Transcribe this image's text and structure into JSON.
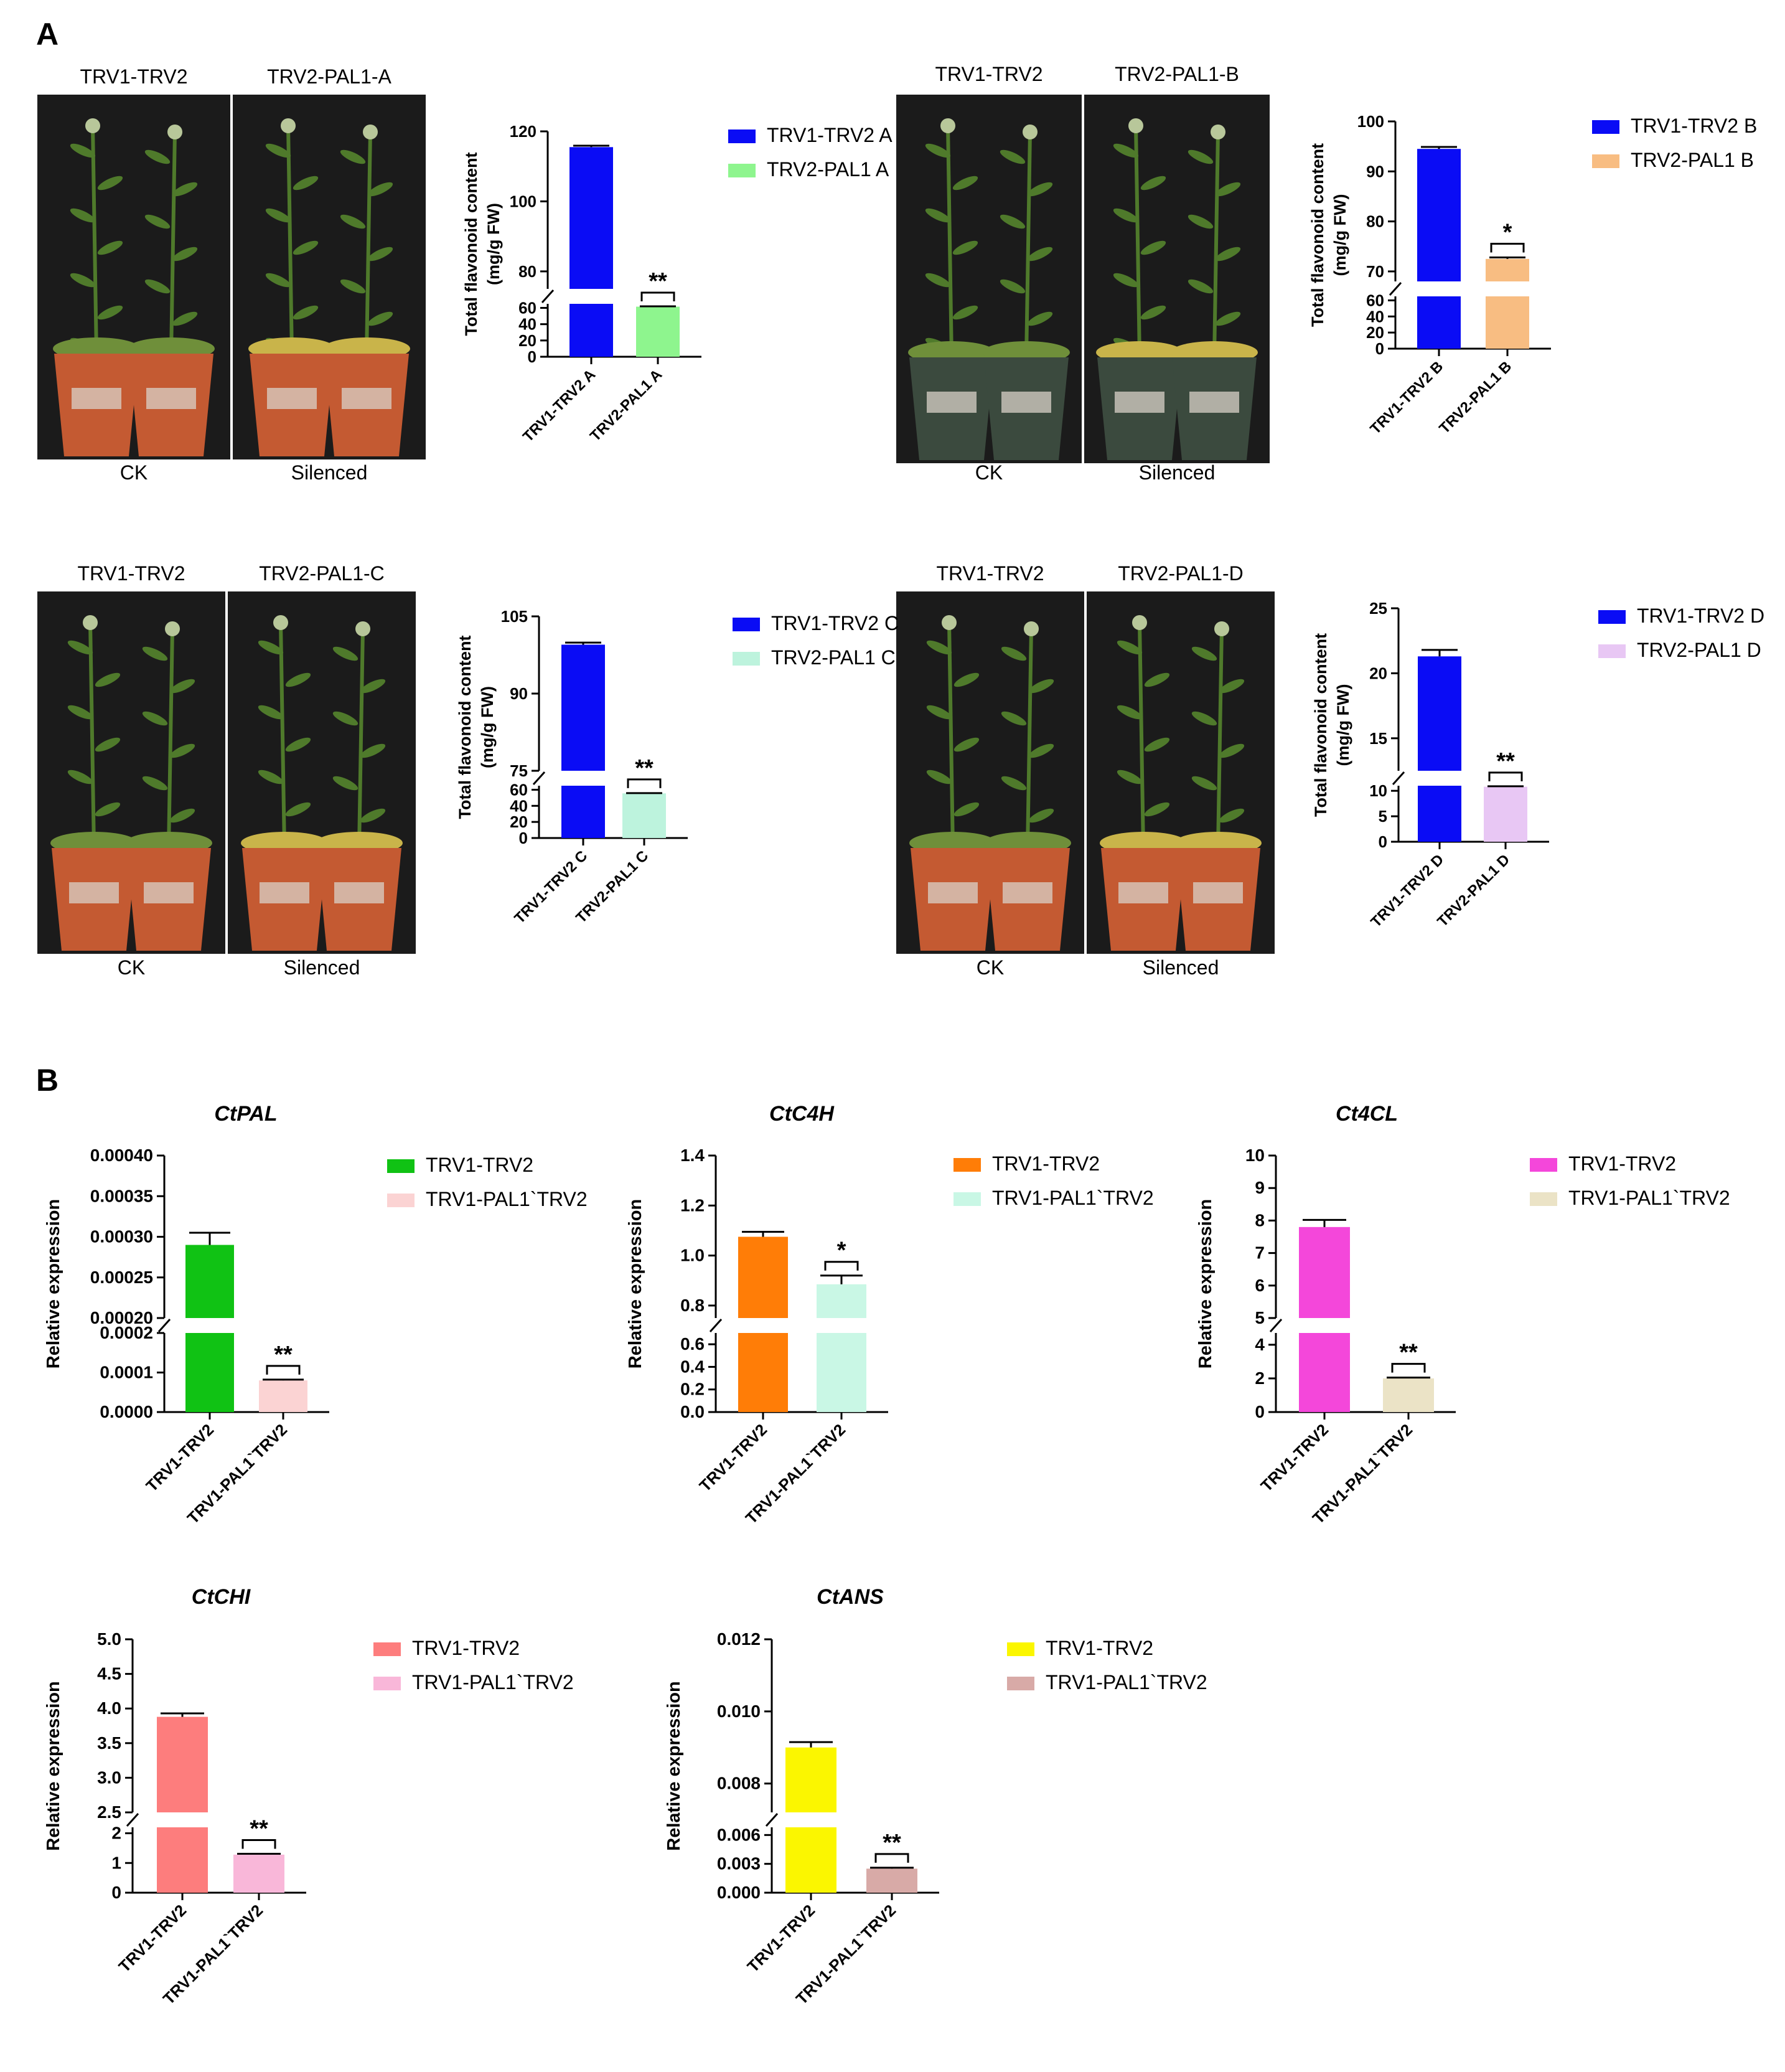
{
  "figure": {
    "panel_a_label": "A",
    "panel_b_label": "B"
  },
  "colors": {
    "trv2_blue": "#0a0cf5",
    "pal1_A": "#8ef58e",
    "pal1_B": "#f8bd82",
    "pal1_C": "#bdf3dd",
    "pal1_D": "#e8c7f4",
    "pal_ctrl": "#10c214",
    "pal_sil": "#fbd3d3",
    "c4h_ctrl": "#ff7d07",
    "c4h_sil": "#c9f7e5",
    "cl_ctrl": "#f447da",
    "cl_sil": "#ebe3c6",
    "chi_ctrl": "#fd7d7d",
    "chi_sil": "#f9b7d9",
    "ans_ctrl": "#fbf600",
    "ans_sil": "#d8aaa7",
    "photo_bg": "#1b1b1b",
    "pot_red": "#c45a32",
    "pot_green": "#3b4a3e",
    "stem_green": "#4f7a2b",
    "leaf_yellow": "#c9b44a"
  },
  "photos": [
    {
      "id": "A",
      "left_label": "TRV1-TRV2",
      "right_label": "TRV2-PAL1-A",
      "left_caption": "CK",
      "right_caption": "Silenced",
      "pot": "red"
    },
    {
      "id": "B",
      "left_label": "TRV1-TRV2",
      "right_label": "TRV2-PAL1-B",
      "left_caption": "CK",
      "right_caption": "Silenced",
      "pot": "green"
    },
    {
      "id": "C",
      "left_label": "TRV1-TRV2",
      "right_label": "TRV2-PAL1-C",
      "left_caption": "CK",
      "right_caption": "Silenced",
      "pot": "red"
    },
    {
      "id": "D",
      "left_label": "TRV1-TRV2",
      "right_label": "TRV2-PAL1-D",
      "left_caption": "CK",
      "right_caption": "Silenced",
      "pot": "red"
    }
  ],
  "chart_data": [
    {
      "id": "flavA",
      "type": "bar",
      "title": "",
      "ylabel": [
        "Total flavonoid content",
        "(mg/g FW)"
      ],
      "categories": [
        "TRV1-TRV2 A",
        "TRV2-PAL1 A"
      ],
      "values": [
        115.5,
        61.5
      ],
      "errors": [
        0.4,
        0.4
      ],
      "colorKeys": [
        "trv2_blue",
        "pal1_A"
      ],
      "legend": [
        "TRV1-TRV2 A",
        "TRV2-PAL1 A"
      ],
      "significance": "**",
      "lower": {
        "max": 65,
        "ticks": [
          0,
          20,
          40,
          60
        ]
      },
      "upper": {
        "min": 75,
        "max": 120,
        "ticks": [
          80,
          100,
          120
        ]
      },
      "breakAt": 65
    },
    {
      "id": "flavB",
      "type": "bar",
      "title": "",
      "ylabel": [
        "Total flavonoid content",
        "(mg/g FW)"
      ],
      "categories": [
        "TRV1-TRV2 B",
        "TRV2-PAL1 B"
      ],
      "values": [
        94.5,
        72.5
      ],
      "errors": [
        0.4,
        0.3
      ],
      "colorKeys": [
        "trv2_blue",
        "pal1_B"
      ],
      "legend": [
        "TRV1-TRV2 B",
        "TRV2-PAL1 B"
      ],
      "significance": "*",
      "lower": {
        "max": 65,
        "ticks": [
          0,
          20,
          40,
          60
        ]
      },
      "upper": {
        "min": 68,
        "max": 100,
        "ticks": [
          70,
          80,
          90,
          100
        ]
      },
      "breakAt": 65
    },
    {
      "id": "flavC",
      "type": "bar",
      "title": "",
      "ylabel": [
        "Total flavonoid content",
        "(mg/g FW)"
      ],
      "categories": [
        "TRV1-TRV2 C",
        "TRV2-PAL1 C"
      ],
      "values": [
        99.5,
        55.5
      ],
      "errors": [
        0.4,
        0.3
      ],
      "colorKeys": [
        "trv2_blue",
        "pal1_C"
      ],
      "legend": [
        "TRV1-TRV2 C",
        "TRV2-PAL1 C"
      ],
      "significance": "**",
      "lower": {
        "max": 65,
        "ticks": [
          0,
          20,
          40,
          60
        ]
      },
      "upper": {
        "min": 75,
        "max": 105,
        "ticks": [
          75,
          90,
          105
        ]
      },
      "breakAt": 65
    },
    {
      "id": "flavD",
      "type": "bar",
      "title": "",
      "ylabel": [
        "Total flavonoid content",
        "(mg/g FW)"
      ],
      "categories": [
        "TRV1-TRV2 D",
        "TRV2-PAL1 D"
      ],
      "values": [
        21.3,
        10.8
      ],
      "errors": [
        0.5,
        0.1
      ],
      "colorKeys": [
        "trv2_blue",
        "pal1_D"
      ],
      "legend": [
        "TRV1-TRV2 D",
        "TRV2-PAL1 D"
      ],
      "significance": "**",
      "lower": {
        "max": 11,
        "ticks": [
          0,
          5,
          10
        ]
      },
      "upper": {
        "min": 12.5,
        "max": 25,
        "ticks": [
          15,
          20,
          25
        ]
      },
      "breakAt": 11
    },
    {
      "id": "ctpal",
      "type": "bar",
      "title": "CtPAL",
      "ylabel": [
        "Relative expression"
      ],
      "categories": [
        "TRV1-TRV2",
        "TRV1-PAL1`TRV2"
      ],
      "values": [
        0.00029,
        8e-05
      ],
      "errors": [
        1.5e-05,
        2e-06
      ],
      "colorKeys": [
        "pal_ctrl",
        "pal_sil"
      ],
      "legend": [
        "TRV1-TRV2",
        "TRV1-PAL1`TRV2"
      ],
      "significance": "**",
      "lower": {
        "max": 0.0002,
        "ticks": [
          0,
          0.0001,
          0.0002
        ],
        "labels": [
          "0.0000",
          "0.0001",
          "0.0002"
        ]
      },
      "upper": {
        "min": 0.0002,
        "max": 0.0004,
        "ticks": [
          0.0002,
          0.00025,
          0.0003,
          0.00035,
          0.0004
        ],
        "labels": [
          "0.00020",
          "0.00025",
          "0.00030",
          "0.00035",
          "0.00040"
        ]
      },
      "breakAt": 0.0002
    },
    {
      "id": "ctc4h",
      "type": "bar",
      "title": "CtC4H",
      "ylabel": [
        "Relative expression"
      ],
      "categories": [
        "TRV1-TRV2",
        "TRV1-PAL1`TRV2"
      ],
      "values": [
        1.075,
        0.885
      ],
      "errors": [
        0.02,
        0.035
      ],
      "colorKeys": [
        "c4h_ctrl",
        "c4h_sil"
      ],
      "legend": [
        "TRV1-TRV2",
        "TRV1-PAL1`TRV2"
      ],
      "significance": "*",
      "lower": {
        "max": 0.7,
        "ticks": [
          0,
          0.2,
          0.4,
          0.6
        ],
        "labels": [
          "0.0",
          "0.2",
          "0.4",
          "0.6"
        ]
      },
      "upper": {
        "min": 0.75,
        "max": 1.4,
        "ticks": [
          0.8,
          1.0,
          1.2,
          1.4
        ],
        "labels": [
          "0.8",
          "1.0",
          "1.2",
          "1.4"
        ]
      },
      "breakAt": 0.7
    },
    {
      "id": "ct4cl",
      "type": "bar",
      "title": "Ct4CL",
      "ylabel": [
        "Relative expression"
      ],
      "categories": [
        "TRV1-TRV2",
        "TRV1-PAL1`TRV2"
      ],
      "values": [
        7.8,
        2.0
      ],
      "errors": [
        0.22,
        0.05
      ],
      "colorKeys": [
        "cl_ctrl",
        "cl_sil"
      ],
      "legend": [
        "TRV1-TRV2",
        "TRV1-PAL1`TRV2"
      ],
      "significance": "**",
      "lower": {
        "max": 4.7,
        "ticks": [
          0,
          2,
          4
        ],
        "labels": [
          "0",
          "2",
          "4"
        ]
      },
      "upper": {
        "min": 5,
        "max": 10,
        "ticks": [
          5,
          6,
          7,
          8,
          9,
          10
        ],
        "labels": [
          "5",
          "6",
          "7",
          "8",
          "9",
          "10"
        ]
      },
      "breakAt": 4.7
    },
    {
      "id": "ctchi",
      "type": "bar",
      "title": "CtCHI",
      "ylabel": [
        "Relative expression"
      ],
      "categories": [
        "TRV1-TRV2",
        "TRV1-PAL1`TRV2"
      ],
      "values": [
        3.88,
        1.28
      ],
      "errors": [
        0.05,
        0.03
      ],
      "colorKeys": [
        "chi_ctrl",
        "chi_sil"
      ],
      "legend": [
        "TRV1-TRV2",
        "TRV1-PAL1`TRV2"
      ],
      "significance": "**",
      "lower": {
        "max": 2.2,
        "ticks": [
          0,
          1,
          2
        ],
        "labels": [
          "0",
          "1",
          "2"
        ]
      },
      "upper": {
        "min": 2.5,
        "max": 5.0,
        "ticks": [
          2.5,
          3.0,
          3.5,
          4.0,
          4.5,
          5.0
        ],
        "labels": [
          "2.5",
          "3.0",
          "3.5",
          "4.0",
          "4.5",
          "5.0"
        ]
      },
      "breakAt": 2.2
    },
    {
      "id": "ctans",
      "type": "bar",
      "title": "CtANS",
      "ylabel": [
        "Relative expression"
      ],
      "categories": [
        "TRV1-TRV2",
        "TRV1-PAL1`TRV2"
      ],
      "values": [
        0.009,
        0.0025
      ],
      "errors": [
        0.00015,
        0.0001
      ],
      "colorKeys": [
        "ans_ctrl",
        "ans_sil"
      ],
      "legend": [
        "TRV1-TRV2",
        "TRV1-PAL1`TRV2"
      ],
      "significance": "**",
      "lower": {
        "max": 0.0068,
        "ticks": [
          0,
          0.003,
          0.006
        ],
        "labels": [
          "0.000",
          "0.003",
          "0.006"
        ]
      },
      "upper": {
        "min": 0.0072,
        "max": 0.012,
        "ticks": [
          0.008,
          0.01,
          0.012
        ],
        "labels": [
          "0.008",
          "0.010",
          "0.012"
        ]
      },
      "breakAt": 0.0068
    }
  ]
}
